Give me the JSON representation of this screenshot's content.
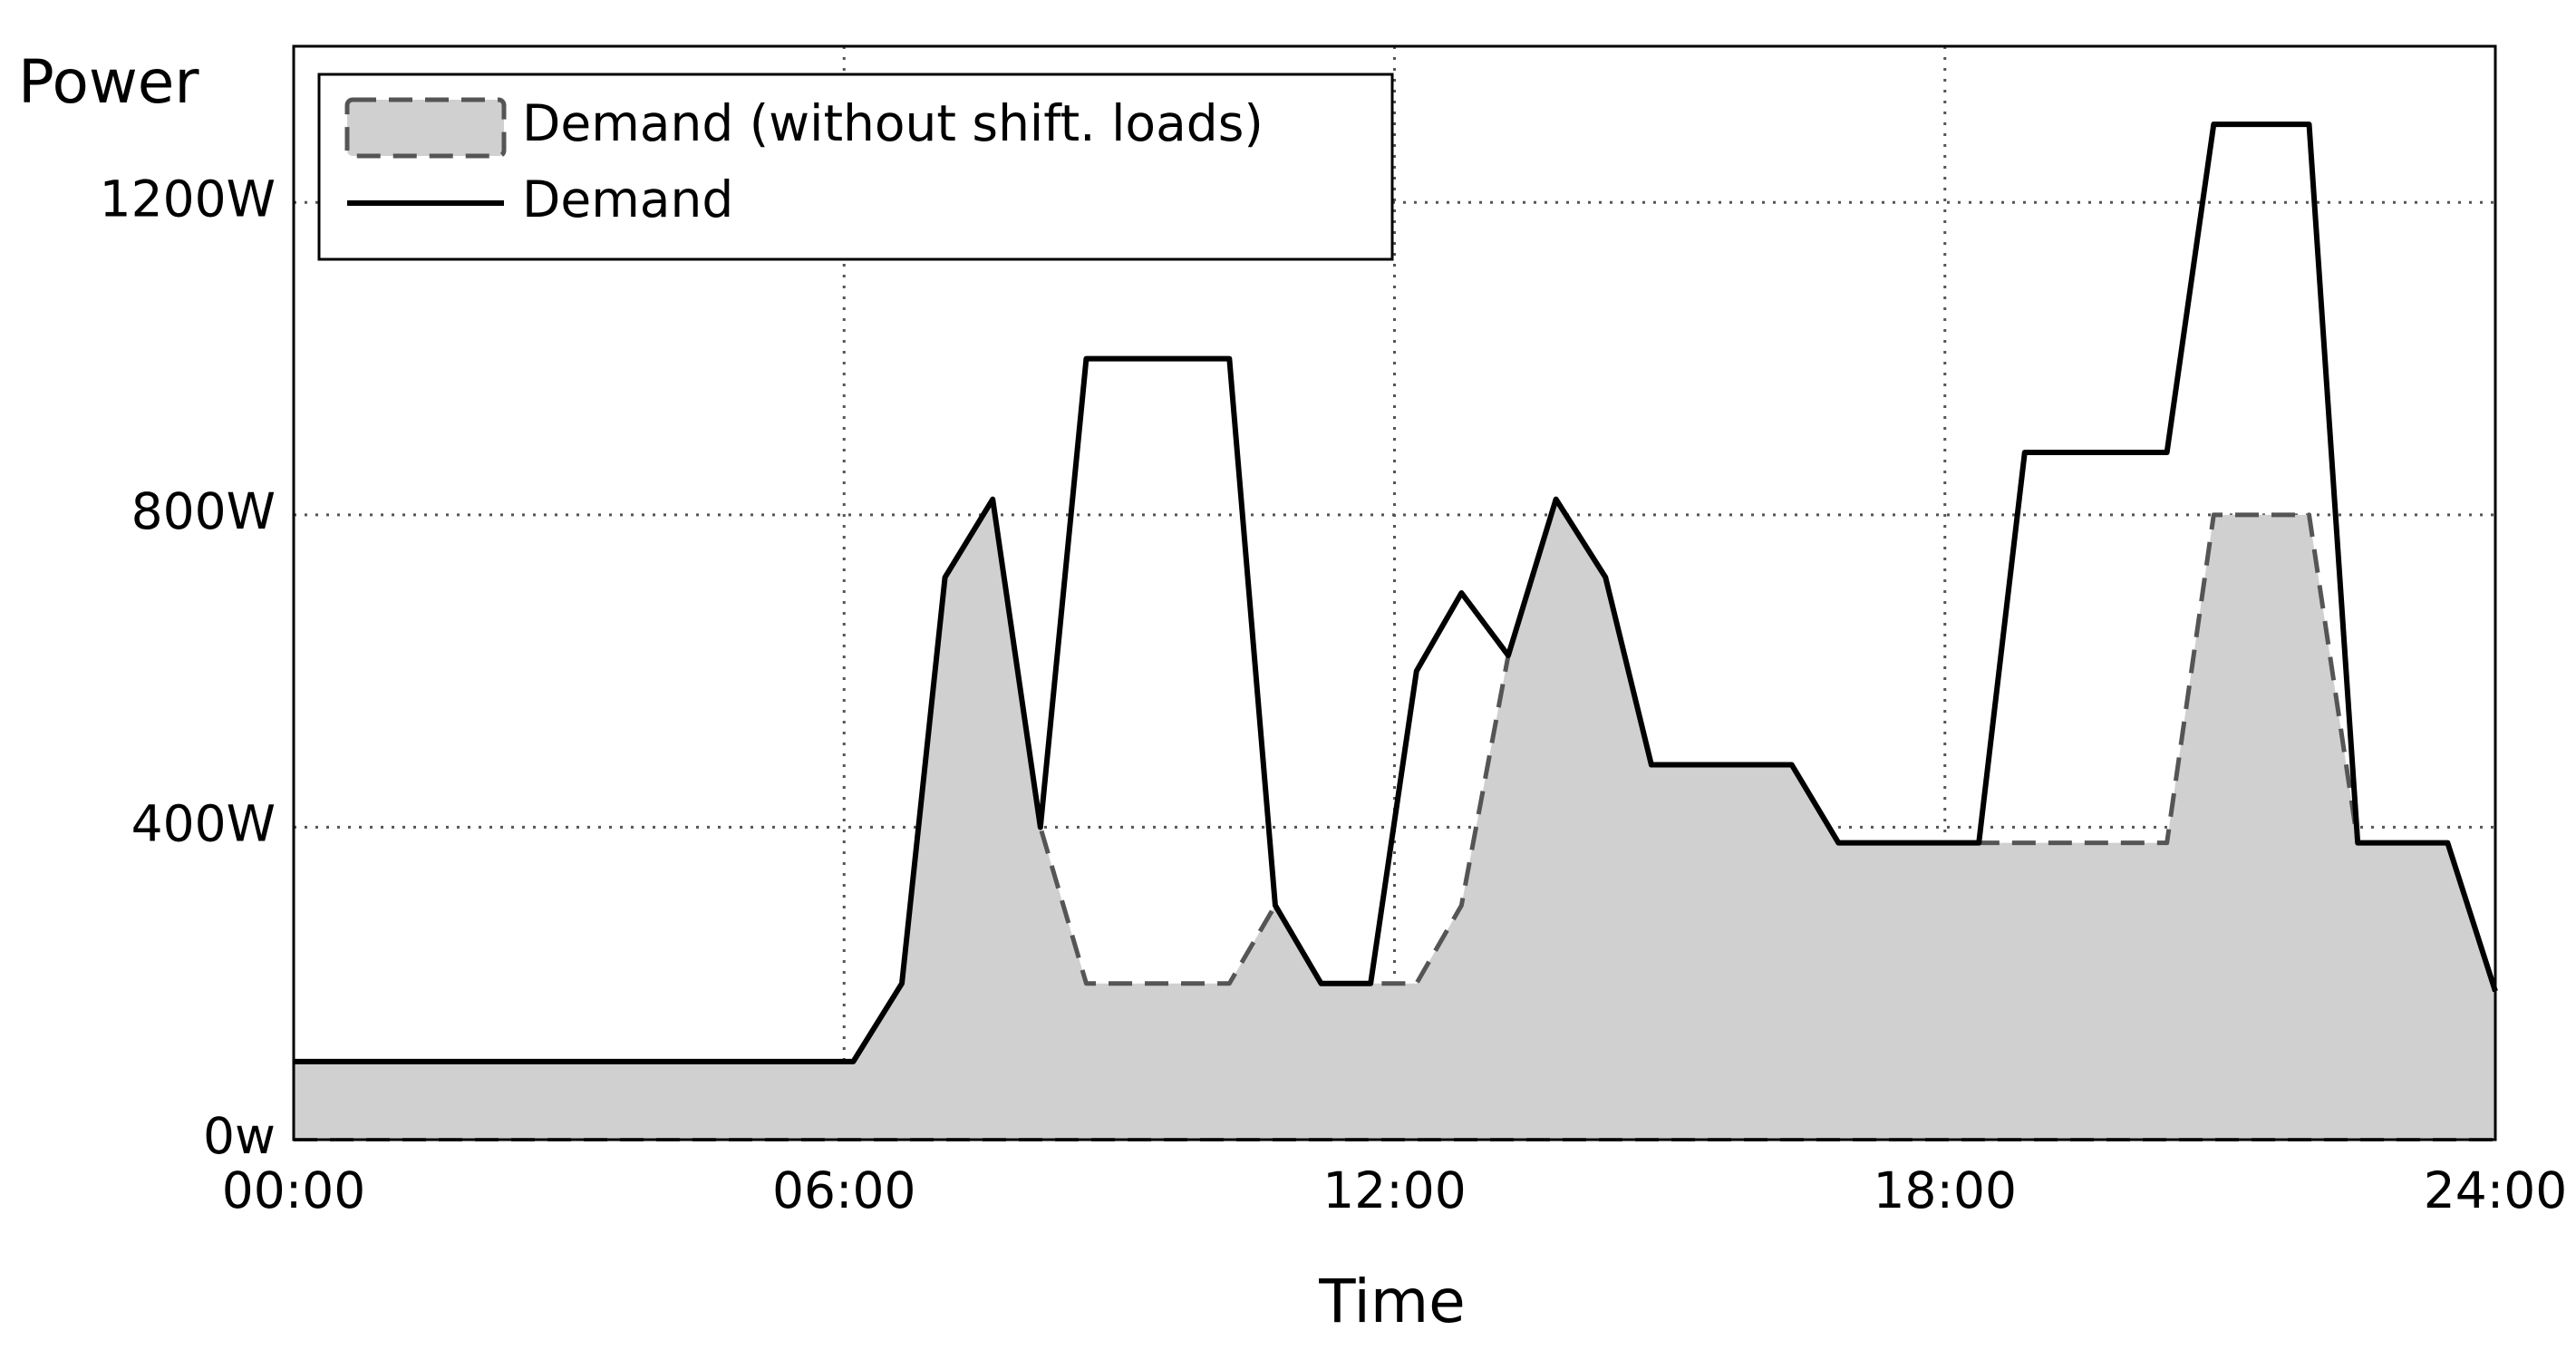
{
  "chart_data": {
    "type": "line",
    "ylabel": "Power",
    "xlabel": "Time",
    "x": [
      0,
      6.1,
      6.63,
      7.1,
      7.62,
      8.14,
      8.64,
      10.2,
      10.7,
      11.2,
      11.74,
      12.24,
      12.73,
      13.24,
      13.76,
      14.3,
      14.8,
      16.33,
      16.84,
      18.37,
      18.87,
      20.42,
      20.93,
      21.46,
      21.97,
      22.5,
      23.48,
      24
    ],
    "series": [
      {
        "name": "Demand (without shift. loads)",
        "color": "#555555",
        "fill": "#d0d0d0",
        "area": true,
        "dashed": true,
        "values": [
          100,
          100,
          200,
          720,
          820,
          400,
          200,
          200,
          300,
          200,
          200,
          200,
          300,
          620,
          820,
          720,
          480,
          480,
          380,
          380,
          380,
          380,
          800,
          800,
          800,
          380,
          380,
          190
        ]
      },
      {
        "name": "Demand",
        "color": "#000000",
        "area": false,
        "dashed": false,
        "values": [
          100,
          100,
          200,
          720,
          820,
          400,
          1000,
          1000,
          300,
          200,
          200,
          600,
          700,
          620,
          820,
          720,
          480,
          480,
          380,
          380,
          880,
          880,
          1300,
          1300,
          1300,
          380,
          380,
          190
        ]
      }
    ],
    "xlim": [
      0,
      24
    ],
    "xticks": [
      {
        "value": 0,
        "label": "00:00"
      },
      {
        "value": 6,
        "label": "06:00"
      },
      {
        "value": 12,
        "label": "12:00"
      },
      {
        "value": 18,
        "label": "18:00"
      },
      {
        "value": 24,
        "label": "24:00"
      }
    ],
    "ylim": [
      0,
      1400
    ],
    "yticks": [
      {
        "value": 0,
        "label": "0w"
      },
      {
        "value": 400,
        "label": "400W"
      },
      {
        "value": 800,
        "label": "800W"
      },
      {
        "value": 1200,
        "label": "1200W"
      }
    ],
    "grid": true,
    "legend": "upper left"
  }
}
